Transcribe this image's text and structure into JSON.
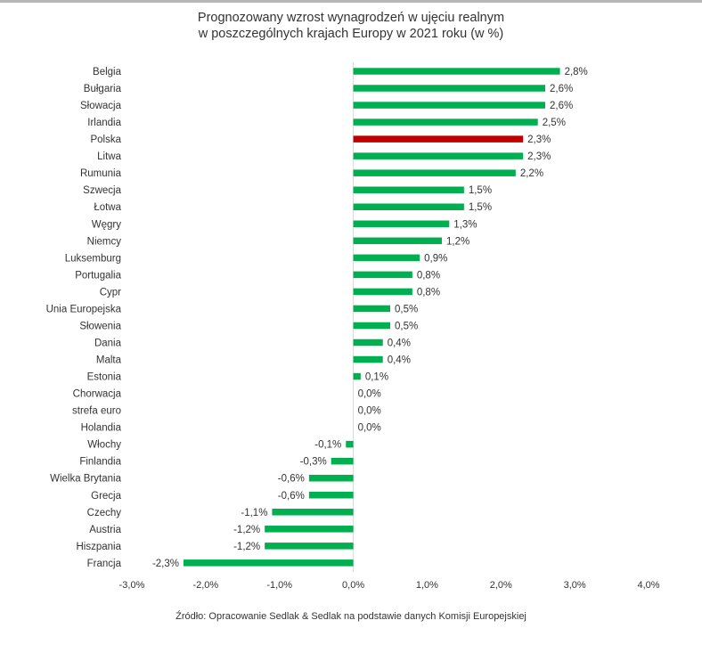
{
  "title_line1": "Prognozowany wzrost wynagrodzeń w ujęciu realnym",
  "title_line2": "w poszczególnych krajach Europy w 2021 roku (w %)",
  "source": "Źródło: Opracowanie Sedlak & Sedlak na podstawie danych Komisji Europejskiej",
  "colors": {
    "bar": "#00b050",
    "highlight": "#c00000",
    "text": "#333333",
    "axis": "#d9d9d9"
  },
  "chart_data": {
    "type": "bar",
    "orientation": "horizontal",
    "title": "Prognozowany wzrost wynagrodzeń w ujęciu realnym w poszczególnych krajach Europy w 2021 roku (w %)",
    "xlabel": "",
    "ylabel": "",
    "xlim": [
      -3.0,
      4.0
    ],
    "xticks": [
      -3.0,
      -2.0,
      -1.0,
      0.0,
      1.0,
      2.0,
      3.0,
      4.0
    ],
    "xtick_labels": [
      "-3,0%",
      "-2,0%",
      "-1,0%",
      "0,0%",
      "1,0%",
      "2,0%",
      "3,0%",
      "4,0%"
    ],
    "grid": false,
    "highlighted_category": "Polska",
    "categories": [
      "Belgia",
      "Bułgaria",
      "Słowacja",
      "Irlandia",
      "Polska",
      "Litwa",
      "Rumunia",
      "Szwecja",
      "Łotwa",
      "Węgry",
      "Niemcy",
      "Luksemburg",
      "Portugalia",
      "Cypr",
      "Unia Europejska",
      "Słowenia",
      "Dania",
      "Malta",
      "Estonia",
      "Chorwacja",
      "strefa euro",
      "Holandia",
      "Włochy",
      "Finlandia",
      "Wielka Brytania",
      "Grecja",
      "Czechy",
      "Austria",
      "Hiszpania",
      "Francja"
    ],
    "values": [
      2.8,
      2.6,
      2.6,
      2.5,
      2.3,
      2.3,
      2.2,
      1.5,
      1.5,
      1.3,
      1.2,
      0.9,
      0.8,
      0.8,
      0.5,
      0.5,
      0.4,
      0.4,
      0.1,
      0.0,
      0.0,
      0.0,
      -0.1,
      -0.3,
      -0.6,
      -0.6,
      -1.1,
      -1.2,
      -1.2,
      -2.3
    ],
    "data_labels": [
      "2,8%",
      "2,6%",
      "2,6%",
      "2,5%",
      "2,3%",
      "2,3%",
      "2,2%",
      "1,5%",
      "1,5%",
      "1,3%",
      "1,2%",
      "0,9%",
      "0,8%",
      "0,8%",
      "0,5%",
      "0,5%",
      "0,4%",
      "0,4%",
      "0,1%",
      "0,0%",
      "0,0%",
      "0,0%",
      "-0,1%",
      "-0,3%",
      "-0,6%",
      "-0,6%",
      "-1,1%",
      "-1,2%",
      "-1,2%",
      "-2,3%"
    ]
  }
}
